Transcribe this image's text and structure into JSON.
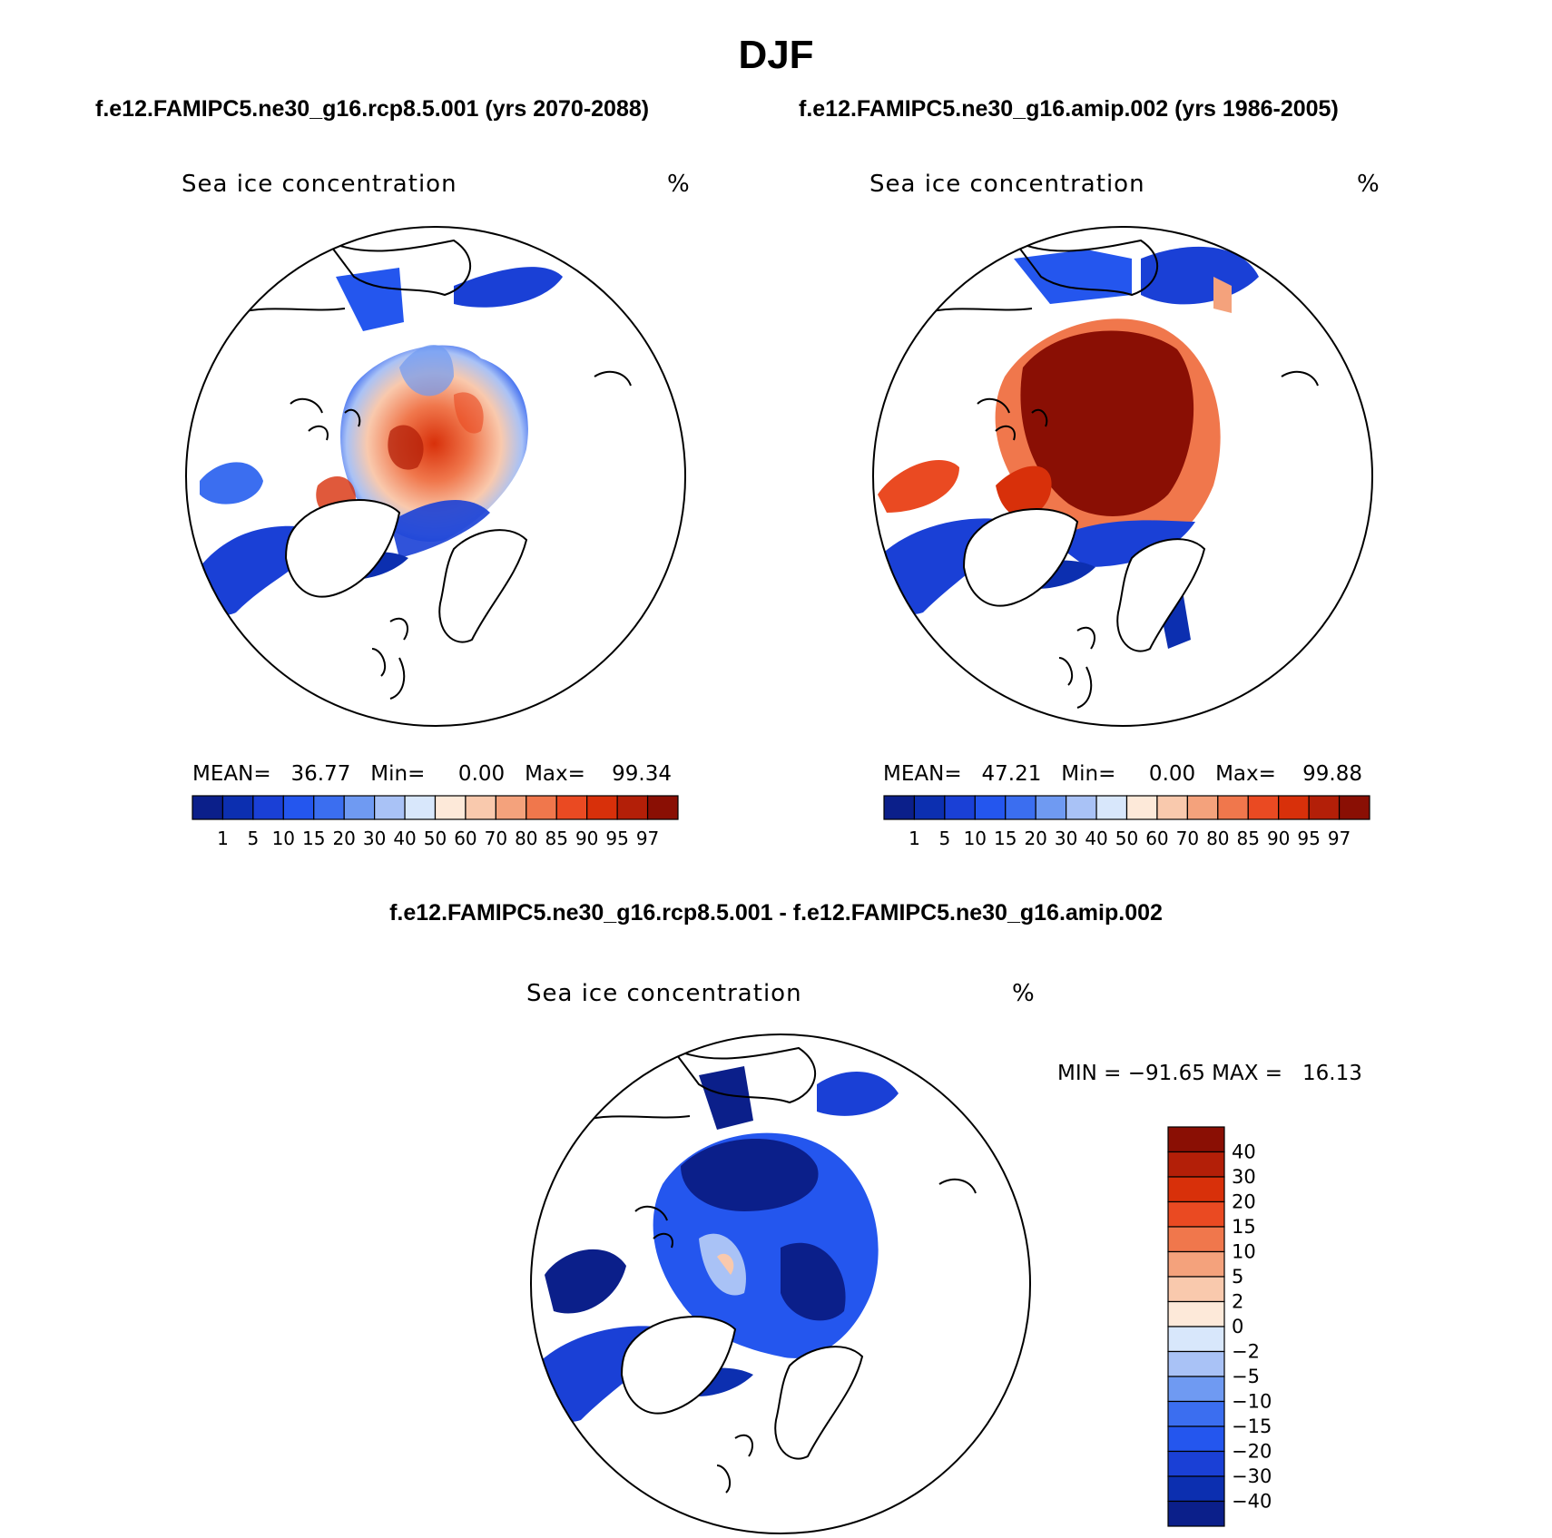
{
  "season": "DJF",
  "case1": {
    "title": "f.e12.FAMIPC5.ne30_g16.rcp8.5.001 (yrs 2070-2088)",
    "plot_title": "Sea ice concentration",
    "units": "%",
    "stats": "MEAN=   36.77   Min=     0.00   Max=    99.34"
  },
  "case2": {
    "title": "f.e12.FAMIPC5.ne30_g16.amip.002 (yrs 1986-2005)",
    "plot_title": "Sea ice concentration",
    "units": "%",
    "stats": "MEAN=   47.21   Min=     0.00   Max=    99.88"
  },
  "diff": {
    "title": "f.e12.FAMIPC5.ne30_g16.rcp8.5.001 - f.e12.FAMIPC5.ne30_g16.amip.002",
    "plot_title": "Sea ice concentration",
    "units": "%",
    "stats": "MIN = −91.65 MAX =   16.13"
  },
  "colorbar": {
    "colors": [
      "#0b1f8a",
      "#0c2fb0",
      "#1a40d6",
      "#2456ee",
      "#3b6ef0",
      "#6f9af2",
      "#a9c2f6",
      "#d8e7fb",
      "#fde9d9",
      "#f9c9ad",
      "#f4a27c",
      "#f0774c",
      "#ea4a22",
      "#d8300a",
      "#b31f08",
      "#8a0f04"
    ],
    "labels": [
      "1",
      "5",
      "10",
      "15",
      "20",
      "30",
      "40",
      "50",
      "60",
      "70",
      "80",
      "85",
      "90",
      "95",
      "97"
    ]
  },
  "diff_colorbar": {
    "colors_top_to_bottom": [
      "#8a0f04",
      "#b31f08",
      "#d8300a",
      "#ea4a22",
      "#f0774c",
      "#f4a27c",
      "#f9c9ad",
      "#fde9d9",
      "#d8e7fb",
      "#a9c2f6",
      "#6f9af2",
      "#3b6ef0",
      "#2456ee",
      "#1a40d6",
      "#0c2fb0",
      "#0b1f8a"
    ],
    "labels_top_to_bottom": [
      "40",
      "30",
      "20",
      "15",
      "10",
      "5",
      "2",
      "0",
      "−2",
      "−5",
      "−10",
      "−15",
      "−20",
      "−30",
      "−40"
    ]
  }
}
